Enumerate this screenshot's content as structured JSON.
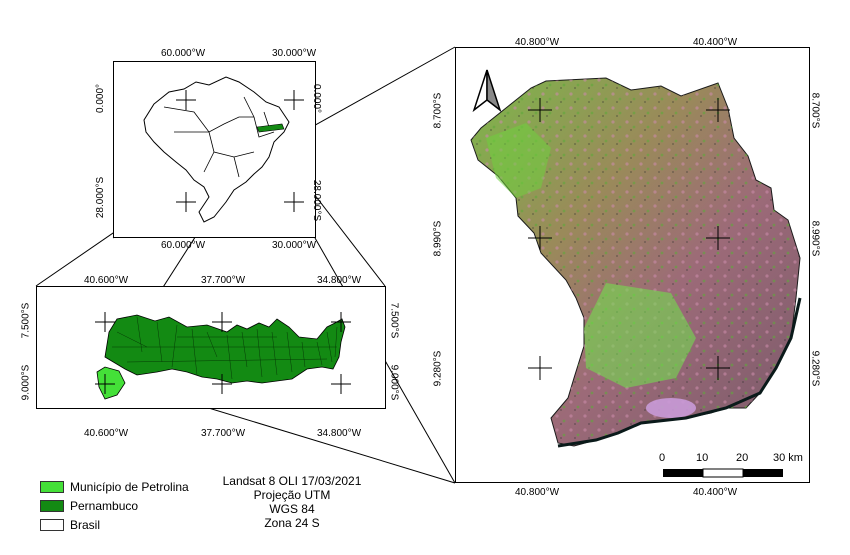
{
  "brazil_map": {
    "top_labels": [
      "60.000°W",
      "30.000°W"
    ],
    "bottom_labels": [
      "60.000°W",
      "30.000°W"
    ],
    "left_labels": [
      "0.000°",
      "28.000°S"
    ],
    "right_labels": [
      "0.000°",
      "28.000°S"
    ]
  },
  "pernambuco_map": {
    "top_labels": [
      "40.600°W",
      "37.700°W",
      "34.800°W"
    ],
    "bottom_labels": [
      "40.600°W",
      "37.700°W",
      "34.800°W"
    ],
    "left_labels": [
      "7.500°S",
      "9.000°S"
    ],
    "right_labels": [
      "7.500°S",
      "9.000°S"
    ]
  },
  "petrolina_map": {
    "top_labels": [
      "40.800°W",
      "40.400°W"
    ],
    "bottom_labels": [
      "40.800°W",
      "40.400°W"
    ],
    "left_labels": [
      "8.700°S",
      "8.990°S",
      "9.280°S"
    ],
    "right_labels": [
      "8.700°S",
      "8.990°S",
      "9.280°S"
    ],
    "scale_labels": [
      "0",
      "10",
      "20",
      "30 km"
    ]
  },
  "legend": {
    "items": [
      {
        "label": "Município de Petrolina",
        "color": "#44e038"
      },
      {
        "label": "Pernambuco",
        "color": "#138a13"
      },
      {
        "label": "Brasil",
        "color": "#ffffff"
      }
    ]
  },
  "info": {
    "line1": "Landsat 8 OLI 17/03/2021",
    "line2": "Projeção UTM",
    "line3": "WGS 84",
    "line4": "Zona 24 S"
  }
}
